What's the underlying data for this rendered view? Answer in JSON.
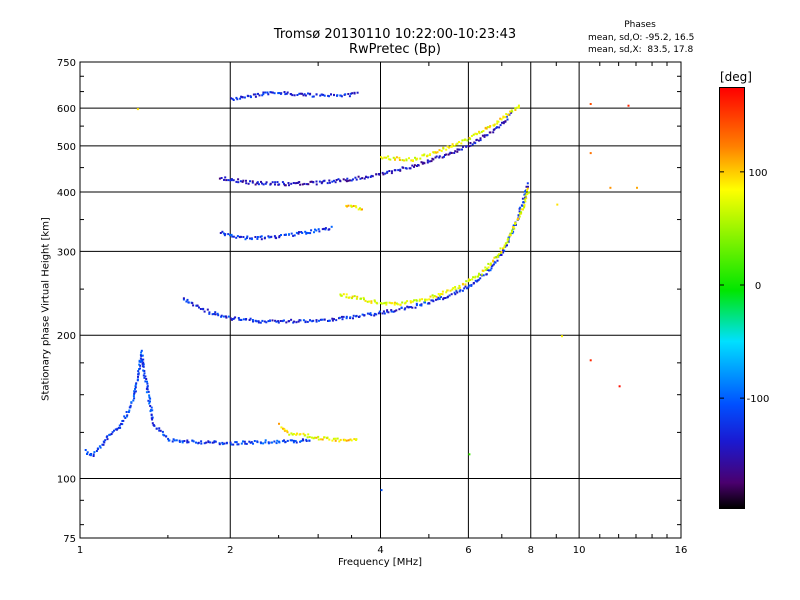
{
  "window": {
    "title_line1": "Tromsø 20130110 10:22:00-10:23:43",
    "title_line2": "RwPretec (Bp)"
  },
  "stats": {
    "header": "Phases",
    "line1": "mean, sd,O: -95.2, 16.5",
    "line2": "mean, sd,X:  83.5, 17.8"
  },
  "colorbar": {
    "unit": "[deg]",
    "range": [
      -198,
      175
    ],
    "ticks": [
      100,
      0,
      -100
    ],
    "tick_labels": [
      "100",
      "0",
      "-100"
    ],
    "colors": [
      "#ff0000",
      "#ff7f00",
      "#ffff00",
      "#00e600",
      "#00e0ff",
      "#0050ff",
      "#1a1ad2",
      "#4a006e",
      "#000000"
    ]
  },
  "chart_data": {
    "type": "scatter",
    "title": "Tromsø 20130110 10:22:00-10:23:43",
    "subtitle": "RwPretec (Bp)",
    "xlabel": "Frequency [MHz]",
    "ylabel": "Stationary phase Virtual Height [km]",
    "x_scale": "log",
    "y_scale": "log",
    "xlim": [
      1,
      16
    ],
    "ylim": [
      75,
      750
    ],
    "x_ticks": [
      1,
      2,
      4,
      6,
      8,
      10,
      16
    ],
    "x_tick_labels": [
      "1",
      "2",
      "4",
      "6",
      "8",
      "10",
      "16"
    ],
    "y_ticks": [
      75,
      100,
      200,
      300,
      400,
      500,
      600,
      750
    ],
    "y_tick_labels": [
      "75",
      "100",
      "200",
      "300",
      "400",
      "500",
      "600",
      "750"
    ],
    "grid": true,
    "color_value": "phase [deg]",
    "traces": [
      {
        "points": [
          [
            1.02,
            115
          ],
          [
            1.05,
            112
          ],
          [
            1.1,
            118
          ],
          [
            1.15,
            125
          ],
          [
            1.2,
            130
          ],
          [
            1.25,
            140
          ],
          [
            1.28,
            150
          ],
          [
            1.3,
            165
          ],
          [
            1.32,
            185
          ],
          [
            1.35,
            160
          ],
          [
            1.4,
            130
          ],
          [
            1.5,
            121
          ],
          [
            1.7,
            120
          ],
          [
            2.0,
            119
          ],
          [
            2.3,
            120
          ],
          [
            2.6,
            120
          ],
          [
            2.9,
            121
          ]
        ],
        "phase": -100
      },
      {
        "points": [
          [
            2.5,
            130
          ],
          [
            2.6,
            125
          ],
          [
            2.8,
            124
          ],
          [
            3.0,
            122
          ],
          [
            3.3,
            121
          ],
          [
            3.6,
            121
          ]
        ],
        "phase": 95
      },
      {
        "points": [
          [
            1.6,
            240
          ],
          [
            1.8,
            225
          ],
          [
            2.0,
            218
          ],
          [
            2.3,
            215
          ],
          [
            2.6,
            215
          ],
          [
            3.0,
            216
          ],
          [
            3.5,
            219
          ],
          [
            4.0,
            224
          ],
          [
            4.5,
            229
          ],
          [
            5.0,
            236
          ],
          [
            5.5,
            244
          ],
          [
            6.0,
            255
          ],
          [
            6.5,
            272
          ],
          [
            7.0,
            300
          ],
          [
            7.4,
            340
          ],
          [
            7.7,
            385
          ],
          [
            7.85,
            420
          ]
        ],
        "phase": -110
      },
      {
        "points": [
          [
            3.3,
            245
          ],
          [
            3.8,
            237
          ],
          [
            4.2,
            233
          ],
          [
            4.8,
            238
          ],
          [
            5.3,
            246
          ],
          [
            5.8,
            256
          ],
          [
            6.3,
            270
          ],
          [
            6.8,
            292
          ],
          [
            7.3,
            330
          ],
          [
            7.7,
            375
          ],
          [
            7.9,
            410
          ]
        ],
        "phase": 85
      },
      {
        "points": [
          [
            1.9,
            430
          ],
          [
            2.2,
            420
          ],
          [
            2.6,
            418
          ],
          [
            3.0,
            420
          ],
          [
            3.5,
            428
          ],
          [
            4.0,
            438
          ],
          [
            4.5,
            452
          ],
          [
            5.0,
            468
          ],
          [
            5.5,
            485
          ],
          [
            6.0,
            505
          ],
          [
            6.5,
            530
          ],
          [
            7.0,
            560
          ],
          [
            7.3,
            590
          ]
        ],
        "phase": -130
      },
      {
        "points": [
          [
            4.0,
            475
          ],
          [
            4.6,
            470
          ],
          [
            5.2,
            490
          ],
          [
            5.8,
            512
          ],
          [
            6.4,
            540
          ],
          [
            7.0,
            575
          ],
          [
            7.6,
            610
          ]
        ],
        "phase": 90
      },
      {
        "points": [
          [
            1.9,
            330
          ],
          [
            2.1,
            322
          ],
          [
            2.4,
            322
          ],
          [
            2.8,
            330
          ],
          [
            3.2,
            338
          ]
        ],
        "phase": -105
      },
      {
        "points": [
          [
            3.4,
            375
          ],
          [
            3.7,
            370
          ]
        ],
        "phase": 95
      },
      {
        "points": [
          [
            2.0,
            630
          ],
          [
            2.4,
            650
          ],
          [
            3.0,
            640
          ],
          [
            3.6,
            645
          ]
        ],
        "phase": -115
      }
    ],
    "scattered_points": [
      {
        "x": 1.3,
        "y": 600,
        "phase": 100
      },
      {
        "x": 10.5,
        "y": 615,
        "phase": 145
      },
      {
        "x": 12.5,
        "y": 610,
        "phase": 160
      },
      {
        "x": 10.5,
        "y": 485,
        "phase": 130
      },
      {
        "x": 11.5,
        "y": 410,
        "phase": 120
      },
      {
        "x": 13.0,
        "y": 410,
        "phase": 115
      },
      {
        "x": 10.5,
        "y": 178,
        "phase": 160
      },
      {
        "x": 12.0,
        "y": 157,
        "phase": 170
      },
      {
        "x": 4.0,
        "y": 95,
        "phase": -90
      },
      {
        "x": 6.0,
        "y": 113,
        "phase": 20
      },
      {
        "x": 9.0,
        "y": 378,
        "phase": 100
      },
      {
        "x": 9.2,
        "y": 200,
        "phase": 95
      }
    ]
  }
}
